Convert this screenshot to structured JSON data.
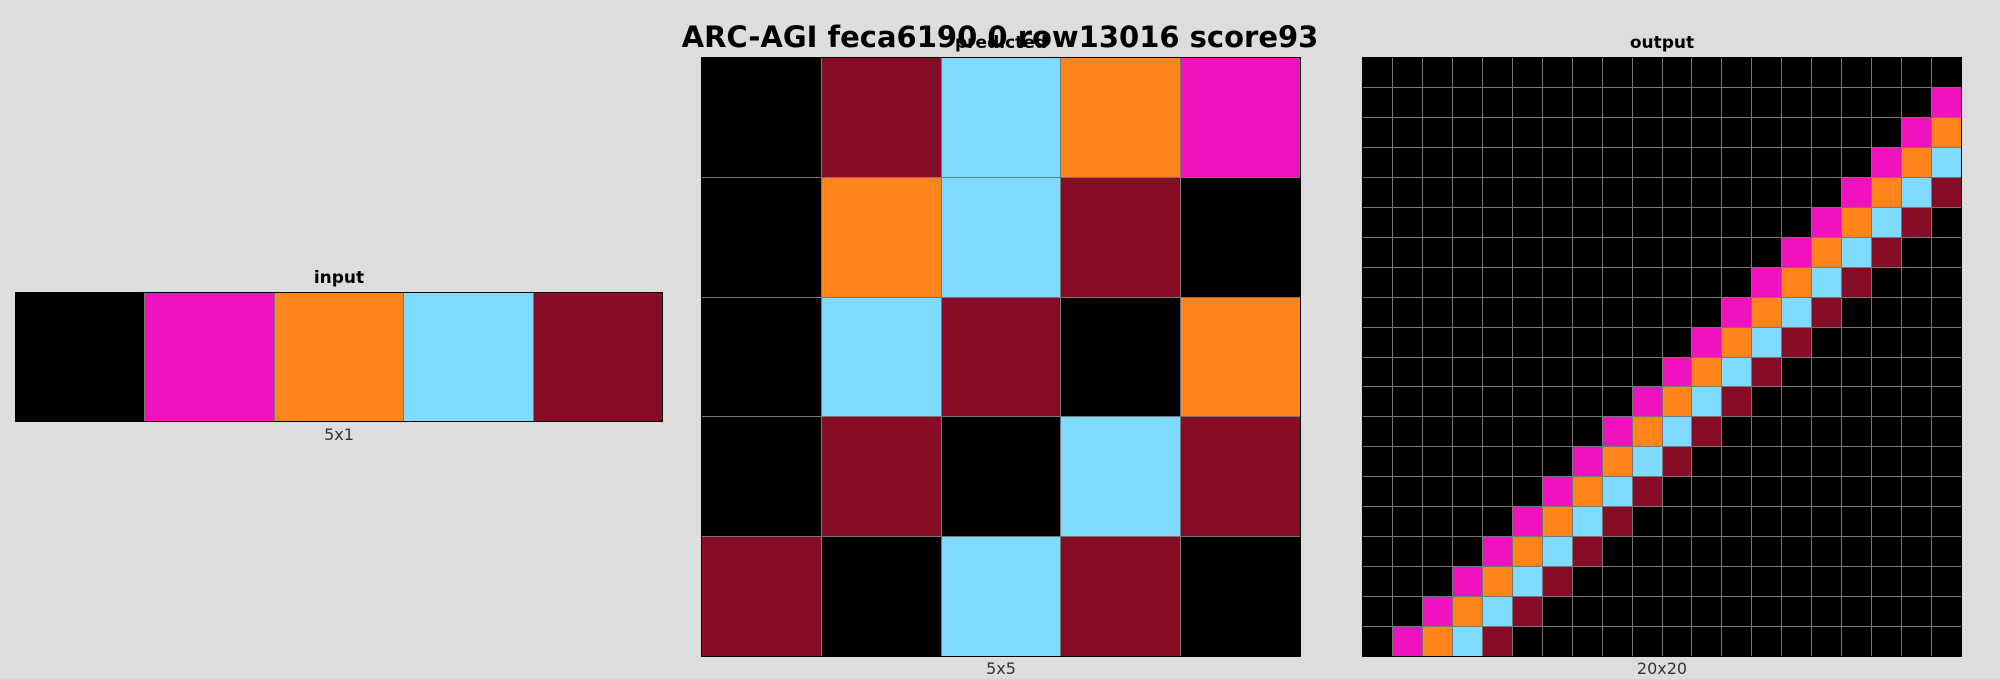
{
  "title": "ARC-AGI feca6190 0 row13016 score93",
  "palette": {
    "0": "#000000",
    "6": "#F012BE",
    "7": "#FF851B",
    "8": "#7FDBFF",
    "9": "#870C25"
  },
  "panels": {
    "input": {
      "label": "input",
      "size_label": "5x1",
      "rows": 1,
      "cols": 5,
      "cells": [
        [
          0,
          6,
          7,
          8,
          9
        ]
      ]
    },
    "predicted": {
      "label": "predicted",
      "size_label": "5x5",
      "rows": 5,
      "cols": 5,
      "cells": [
        [
          0,
          9,
          8,
          7,
          6
        ],
        [
          0,
          7,
          8,
          9,
          0
        ],
        [
          0,
          8,
          9,
          0,
          7
        ],
        [
          0,
          9,
          0,
          8,
          9
        ],
        [
          9,
          0,
          8,
          9,
          0
        ]
      ]
    },
    "output": {
      "label": "output",
      "size_label": "20x20",
      "rows": 20,
      "cols": 20,
      "cells": [
        [
          0,
          0,
          0,
          0,
          0,
          0,
          0,
          0,
          0,
          0,
          0,
          0,
          0,
          0,
          0,
          0,
          0,
          0,
          0,
          0
        ],
        [
          0,
          0,
          0,
          0,
          0,
          0,
          0,
          0,
          0,
          0,
          0,
          0,
          0,
          0,
          0,
          0,
          0,
          0,
          0,
          6
        ],
        [
          0,
          0,
          0,
          0,
          0,
          0,
          0,
          0,
          0,
          0,
          0,
          0,
          0,
          0,
          0,
          0,
          0,
          0,
          6,
          7
        ],
        [
          0,
          0,
          0,
          0,
          0,
          0,
          0,
          0,
          0,
          0,
          0,
          0,
          0,
          0,
          0,
          0,
          0,
          6,
          7,
          8
        ],
        [
          0,
          0,
          0,
          0,
          0,
          0,
          0,
          0,
          0,
          0,
          0,
          0,
          0,
          0,
          0,
          0,
          6,
          7,
          8,
          9
        ],
        [
          0,
          0,
          0,
          0,
          0,
          0,
          0,
          0,
          0,
          0,
          0,
          0,
          0,
          0,
          0,
          6,
          7,
          8,
          9,
          0
        ],
        [
          0,
          0,
          0,
          0,
          0,
          0,
          0,
          0,
          0,
          0,
          0,
          0,
          0,
          0,
          6,
          7,
          8,
          9,
          0,
          0
        ],
        [
          0,
          0,
          0,
          0,
          0,
          0,
          0,
          0,
          0,
          0,
          0,
          0,
          0,
          6,
          7,
          8,
          9,
          0,
          0,
          0
        ],
        [
          0,
          0,
          0,
          0,
          0,
          0,
          0,
          0,
          0,
          0,
          0,
          0,
          6,
          7,
          8,
          9,
          0,
          0,
          0,
          0
        ],
        [
          0,
          0,
          0,
          0,
          0,
          0,
          0,
          0,
          0,
          0,
          0,
          6,
          7,
          8,
          9,
          0,
          0,
          0,
          0,
          0
        ],
        [
          0,
          0,
          0,
          0,
          0,
          0,
          0,
          0,
          0,
          0,
          6,
          7,
          8,
          9,
          0,
          0,
          0,
          0,
          0,
          0
        ],
        [
          0,
          0,
          0,
          0,
          0,
          0,
          0,
          0,
          0,
          6,
          7,
          8,
          9,
          0,
          0,
          0,
          0,
          0,
          0,
          0
        ],
        [
          0,
          0,
          0,
          0,
          0,
          0,
          0,
          0,
          6,
          7,
          8,
          9,
          0,
          0,
          0,
          0,
          0,
          0,
          0,
          0
        ],
        [
          0,
          0,
          0,
          0,
          0,
          0,
          0,
          6,
          7,
          8,
          9,
          0,
          0,
          0,
          0,
          0,
          0,
          0,
          0,
          0
        ],
        [
          0,
          0,
          0,
          0,
          0,
          0,
          6,
          7,
          8,
          9,
          0,
          0,
          0,
          0,
          0,
          0,
          0,
          0,
          0,
          0
        ],
        [
          0,
          0,
          0,
          0,
          0,
          6,
          7,
          8,
          9,
          0,
          0,
          0,
          0,
          0,
          0,
          0,
          0,
          0,
          0,
          0
        ],
        [
          0,
          0,
          0,
          0,
          6,
          7,
          8,
          9,
          0,
          0,
          0,
          0,
          0,
          0,
          0,
          0,
          0,
          0,
          0,
          0
        ],
        [
          0,
          0,
          0,
          6,
          7,
          8,
          9,
          0,
          0,
          0,
          0,
          0,
          0,
          0,
          0,
          0,
          0,
          0,
          0,
          0
        ],
        [
          0,
          0,
          6,
          7,
          8,
          9,
          0,
          0,
          0,
          0,
          0,
          0,
          0,
          0,
          0,
          0,
          0,
          0,
          0,
          0
        ],
        [
          0,
          6,
          7,
          8,
          9,
          0,
          0,
          0,
          0,
          0,
          0,
          0,
          0,
          0,
          0,
          0,
          0,
          0,
          0,
          0
        ]
      ]
    }
  }
}
